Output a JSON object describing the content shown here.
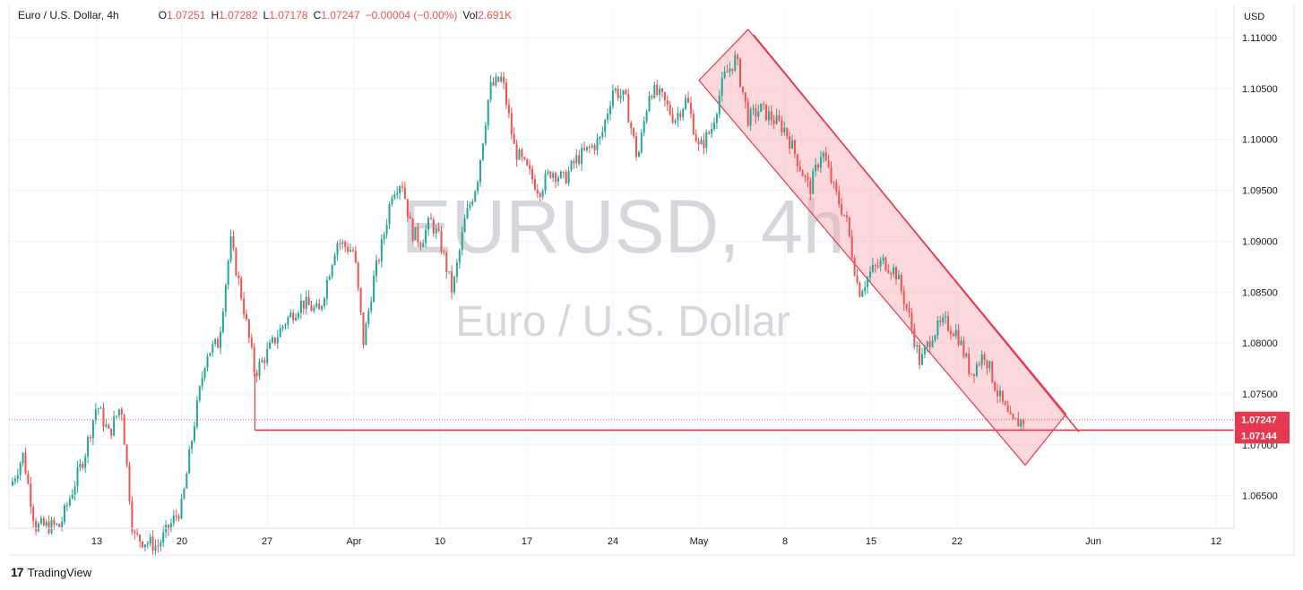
{
  "header": {
    "symbol_name": "Euro / U.S. Dollar, 4h",
    "o_label": "O",
    "o_value": "1.07251",
    "h_label": "H",
    "h_value": "1.07282",
    "l_label": "L",
    "l_value": "1.07178",
    "c_label": "C",
    "c_value": "1.07247",
    "change": "−0.00004 (−0.00%)",
    "vol_label": "Vol",
    "vol_value": "2.691K"
  },
  "watermark": {
    "symbol": "EURUSD, 4h",
    "name": "Euro / U.S. Dollar"
  },
  "footer": {
    "brand": "TradingView",
    "brand_mark": "17"
  },
  "colors": {
    "up": "#26a69a",
    "down": "#ef5350",
    "line": "#e53950",
    "channel_fill": "#f7a8b0",
    "grid": "#f0f3fa"
  },
  "chart_data": {
    "type": "candlestick",
    "title": "Euro / U.S. Dollar, 4h",
    "currency": "USD",
    "y_ticks": [
      "1.11000",
      "1.10500",
      "1.10000",
      "1.09500",
      "1.09000",
      "1.08500",
      "1.08000",
      "1.07500",
      "1.07000",
      "1.06500"
    ],
    "ylim": [
      1.062,
      1.111
    ],
    "x_ticks": [
      "13",
      "20",
      "27",
      "Apr",
      "10",
      "17",
      "24",
      "May",
      "8",
      "15",
      "22",
      "Jun",
      "12"
    ],
    "last_price": "1.07247",
    "support_price": "1.07144",
    "support_level": 1.07144,
    "channel": {
      "upper_start": {
        "date": "May 5",
        "price": 1.1108
      },
      "upper_end": {
        "date": "May 30",
        "price": 1.073
      },
      "lower_start": {
        "date": "May 1",
        "price": 1.1058
      },
      "lower_end": {
        "date": "May 27",
        "price": 1.068
      }
    },
    "price_path": [
      [
        1.066,
        "Mar 6"
      ],
      [
        1.069,
        "Mar 7"
      ],
      [
        1.062,
        "Mar 8"
      ],
      [
        1.062,
        "Mar 10"
      ],
      [
        1.069,
        "Mar 12"
      ],
      [
        1.074,
        "Mar 13"
      ],
      [
        1.071,
        "Mar 14"
      ],
      [
        1.074,
        "Mar 15"
      ],
      [
        1.061,
        "Mar 16"
      ],
      [
        1.06,
        "Mar 18"
      ],
      [
        1.064,
        "Mar 20"
      ],
      [
        1.072,
        "Mar 21"
      ],
      [
        1.079,
        "Mar 22"
      ],
      [
        1.08,
        "Mar 23"
      ],
      [
        1.09,
        "Mar 24"
      ],
      [
        1.084,
        "Mar 25"
      ],
      [
        1.077,
        "Mar 26"
      ],
      [
        1.079,
        "Mar 27"
      ],
      [
        1.082,
        "Mar 28"
      ],
      [
        1.084,
        "Mar 29"
      ],
      [
        1.083,
        "Mar 30"
      ],
      [
        1.09,
        "Mar 31"
      ],
      [
        1.089,
        "Apr 1"
      ],
      [
        1.08,
        "Apr 2"
      ],
      [
        1.086,
        "Apr 3"
      ],
      [
        1.09,
        "Apr 4"
      ],
      [
        1.095,
        "Apr 5"
      ],
      [
        1.096,
        "Apr 6"
      ],
      [
        1.091,
        "Apr 7"
      ],
      [
        1.09,
        "Apr 8"
      ],
      [
        1.092,
        "Apr 9"
      ],
      [
        1.09,
        "Apr 10"
      ],
      [
        1.085,
        "Apr 11"
      ],
      [
        1.092,
        "Apr 12"
      ],
      [
        1.096,
        "Apr 13"
      ],
      [
        1.105,
        "Apr 14"
      ],
      [
        1.106,
        "Apr 15"
      ],
      [
        1.099,
        "Apr 16"
      ],
      [
        1.097,
        "Apr 17"
      ],
      [
        1.095,
        "Apr 18"
      ],
      [
        1.097,
        "Apr 19"
      ],
      [
        1.096,
        "Apr 20"
      ],
      [
        1.098,
        "Apr 21"
      ],
      [
        1.099,
        "Apr 22"
      ],
      [
        1.1,
        "Apr 23"
      ],
      [
        1.105,
        "Apr 24"
      ],
      [
        1.104,
        "Apr 25"
      ],
      [
        1.098,
        "Apr 26"
      ],
      [
        1.105,
        "Apr 27"
      ],
      [
        1.104,
        "Apr 28"
      ],
      [
        1.102,
        "Apr 29"
      ],
      [
        1.104,
        "Apr 30"
      ],
      [
        1.099,
        "May 1"
      ],
      [
        1.101,
        "May 2"
      ],
      [
        1.106,
        "May 3"
      ],
      [
        1.108,
        "May 4"
      ],
      [
        1.102,
        "May 5"
      ],
      [
        1.103,
        "May 6"
      ],
      [
        1.101,
        "May 8"
      ],
      [
        1.098,
        "May 9"
      ],
      [
        1.095,
        "May 10"
      ],
      [
        1.099,
        "May 11"
      ],
      [
        1.095,
        "May 12"
      ],
      [
        1.092,
        "May 13"
      ],
      [
        1.085,
        "May 14"
      ],
      [
        1.087,
        "May 15"
      ],
      [
        1.088,
        "May 16"
      ],
      [
        1.087,
        "May 17"
      ],
      [
        1.083,
        "May 18"
      ],
      [
        1.078,
        "May 19"
      ],
      [
        1.081,
        "May 20"
      ],
      [
        1.082,
        "May 21"
      ],
      [
        1.081,
        "May 22"
      ],
      [
        1.077,
        "May 23"
      ],
      [
        1.079,
        "May 24"
      ],
      [
        1.075,
        "May 25"
      ],
      [
        1.072,
        "May 26"
      ],
      [
        1.07247,
        "May 27"
      ]
    ]
  }
}
